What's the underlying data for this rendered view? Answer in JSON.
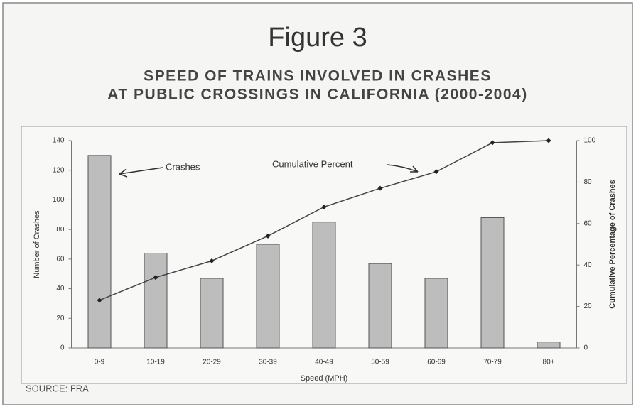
{
  "chart_data": {
    "type": "bar_line",
    "title": "Figure 3",
    "subtitle": [
      "SPEED OF TRAINS INVOLVED IN CRASHES",
      "AT PUBLIC CROSSINGS IN CALIFORNIA (2000-2004)"
    ],
    "x_label": "Speed (MPH)",
    "y_label": "Number of Crashes",
    "y2_label": "Cumulative Percentage of Crashes",
    "source": "SOURCE: FRA",
    "annotations": [
      "Crashes",
      "Cumulative Percent"
    ],
    "categories": [
      "0-9",
      "10-19",
      "20-29",
      "30-39",
      "40-49",
      "50-59",
      "60-69",
      "70-79",
      "80+"
    ],
    "series": [
      {
        "name": "Crashes",
        "color": "#bdbdbd",
        "values": [
          130,
          64,
          47,
          70,
          85,
          57,
          47,
          88,
          4
        ]
      },
      {
        "name": "Cumulative Percent",
        "color": "#444444",
        "axis": "y2",
        "values": [
          23,
          34,
          42,
          54,
          68,
          77,
          85,
          99,
          100
        ]
      }
    ],
    "ylim": [
      0,
      140
    ],
    "yticks": [
      0,
      20,
      40,
      60,
      80,
      100,
      120,
      140
    ],
    "y2lim": [
      0,
      100
    ],
    "y2ticks": [
      0,
      20,
      40,
      60,
      80,
      100
    ]
  }
}
